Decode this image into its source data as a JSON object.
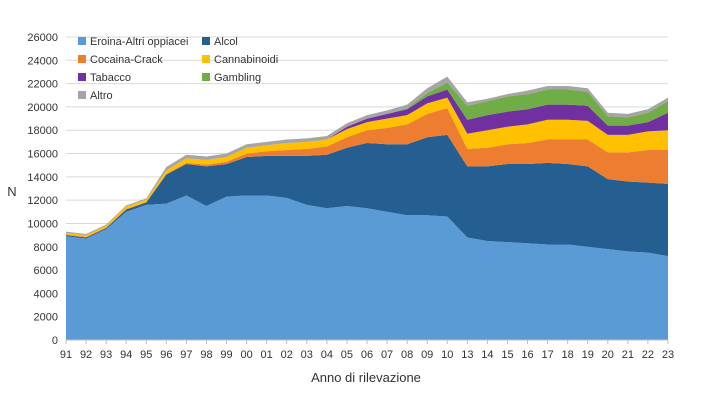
{
  "chart_data": {
    "type": "area",
    "stacked": true,
    "title": "",
    "xlabel": "Anno di rilevazione",
    "ylabel": "N",
    "ylim": [
      0,
      26000
    ],
    "yticks": [
      0,
      2000,
      4000,
      6000,
      8000,
      10000,
      12000,
      14000,
      16000,
      18000,
      20000,
      22000,
      24000,
      26000
    ],
    "grid": true,
    "legend_position": "top-left",
    "x": [
      "91",
      "92",
      "93",
      "94",
      "95",
      "96",
      "97",
      "98",
      "99",
      "00",
      "01",
      "02",
      "03",
      "04",
      "05",
      "06",
      "07",
      "08",
      "09",
      "10",
      "13",
      "14",
      "15",
      "16",
      "17",
      "18",
      "19",
      "20",
      "21",
      "22",
      "23"
    ],
    "series": [
      {
        "name": "Eroina-Altri oppiacei",
        "color": "#5b9bd5",
        "values": [
          8900,
          8700,
          9500,
          11000,
          11600,
          11700,
          12400,
          11500,
          12300,
          12400,
          12400,
          12200,
          11600,
          11300,
          11500,
          11300,
          11000,
          10700,
          10700,
          10600,
          8800,
          8500,
          8400,
          8300,
          8200,
          8200,
          8000,
          7800,
          7600,
          7500,
          7200
        ]
      },
      {
        "name": "Alcol",
        "color": "#255e91",
        "values": [
          100,
          100,
          100,
          200,
          200,
          2500,
          2700,
          3400,
          2800,
          3300,
          3400,
          3600,
          4200,
          4600,
          5000,
          5600,
          5800,
          6100,
          6700,
          7000,
          6100,
          6400,
          6700,
          6800,
          7000,
          6900,
          6900,
          6000,
          6000,
          6000,
          6200
        ]
      },
      {
        "name": "Cocaina-Crack",
        "color": "#ed7d31",
        "values": [
          50,
          50,
          50,
          50,
          50,
          50,
          100,
          150,
          200,
          300,
          400,
          500,
          600,
          700,
          900,
          1100,
          1400,
          1700,
          2000,
          2300,
          1500,
          1600,
          1700,
          1800,
          2000,
          2100,
          2300,
          2300,
          2500,
          2800,
          2900
        ]
      },
      {
        "name": "Cannabinoidi",
        "color": "#ffc000",
        "values": [
          150,
          150,
          150,
          200,
          200,
          300,
          400,
          400,
          400,
          500,
          500,
          600,
          600,
          600,
          700,
          700,
          800,
          800,
          900,
          900,
          1300,
          1500,
          1500,
          1600,
          1700,
          1700,
          1600,
          1500,
          1500,
          1600,
          1700
        ]
      },
      {
        "name": "Tabacco",
        "color": "#7030a0",
        "values": [
          0,
          0,
          0,
          0,
          0,
          0,
          0,
          0,
          0,
          0,
          0,
          0,
          0,
          0,
          200,
          300,
          400,
          500,
          600,
          700,
          1200,
          1300,
          1300,
          1300,
          1300,
          1300,
          1300,
          800,
          800,
          800,
          1500
        ]
      },
      {
        "name": "Gambling",
        "color": "#70ad47",
        "values": [
          0,
          0,
          0,
          0,
          0,
          0,
          0,
          0,
          0,
          0,
          0,
          0,
          0,
          0,
          0,
          0,
          0,
          100,
          300,
          600,
          1200,
          1200,
          1300,
          1300,
          1300,
          1300,
          1200,
          800,
          700,
          800,
          1000
        ]
      },
      {
        "name": "Altro",
        "color": "#a5a5a5",
        "values": [
          100,
          100,
          100,
          100,
          100,
          300,
          300,
          300,
          300,
          300,
          300,
          300,
          300,
          300,
          300,
          300,
          300,
          300,
          400,
          500,
          300,
          200,
          200,
          300,
          300,
          300,
          300,
          300,
          300,
          300,
          300
        ]
      }
    ]
  }
}
